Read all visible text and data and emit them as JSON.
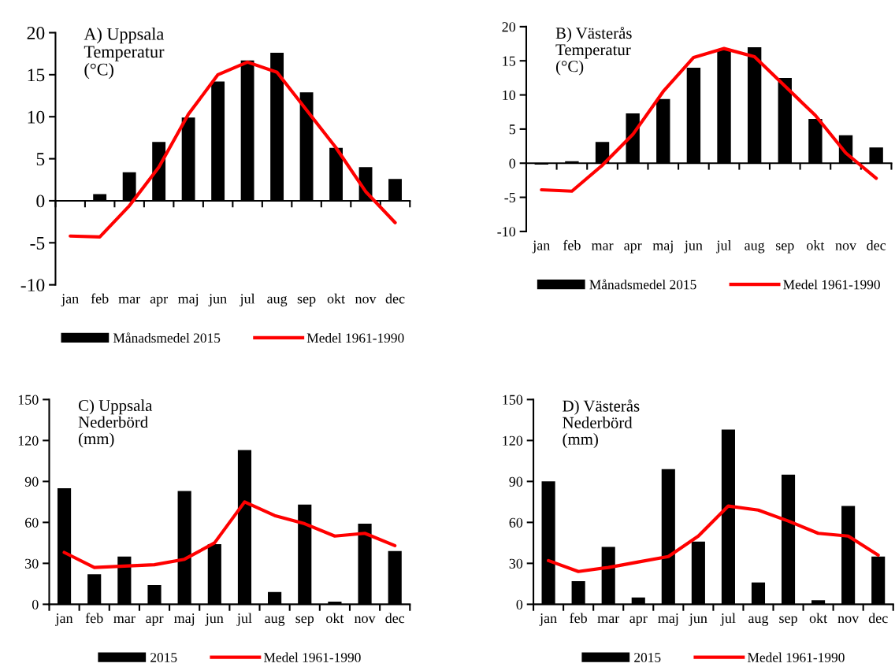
{
  "chart_data": [
    {
      "type": "bar",
      "title": "A) Uppsala\nTemperatur\n(°C)",
      "categories": [
        "jan",
        "feb",
        "mar",
        "apr",
        "maj",
        "jun",
        "jul",
        "aug",
        "sep",
        "okt",
        "nov",
        "dec"
      ],
      "ylim": [
        -10,
        20
      ],
      "yticks": [
        -10,
        -5,
        0,
        5,
        10,
        15,
        20
      ],
      "legend": "bottom",
      "series": [
        {
          "name": "Månadsmedel 2015",
          "color": "#000000",
          "values": [
            0,
            0.8,
            3.4,
            7.0,
            9.9,
            14.2,
            16.7,
            17.6,
            12.9,
            6.3,
            4.0,
            2.6
          ]
        },
        {
          "name": "Medel 1961-1990",
          "type": "line",
          "color": "#ff0000",
          "values": [
            -4.2,
            -4.3,
            -0.6,
            4.0,
            10.3,
            15.0,
            16.5,
            15.3,
            10.8,
            6.3,
            1.1,
            -2.6
          ]
        }
      ]
    },
    {
      "type": "bar",
      "title": "B) Västerås\nTemperatur\n(°C)",
      "categories": [
        "jan",
        "feb",
        "mar",
        "apr",
        "maj",
        "jun",
        "jul",
        "aug",
        "sep",
        "okt",
        "nov",
        "dec"
      ],
      "ylim": [
        -10,
        20
      ],
      "yticks": [
        -10,
        -5,
        0,
        5,
        10,
        15,
        20
      ],
      "legend": "bottom",
      "series": [
        {
          "name": "Månadsmedel 2015",
          "color": "#000000",
          "values": [
            -0.2,
            0.3,
            3.1,
            7.3,
            9.4,
            14.0,
            16.7,
            17.0,
            12.5,
            6.5,
            4.1,
            2.3
          ]
        },
        {
          "name": "Medel 1961-1990",
          "type": "line",
          "color": "#ff0000",
          "values": [
            -3.9,
            -4.1,
            -0.3,
            4.2,
            10.5,
            15.5,
            16.8,
            15.6,
            11.3,
            7.0,
            1.5,
            -2.2
          ]
        }
      ]
    },
    {
      "type": "bar",
      "title": "C) Uppsala\nNederbörd\n(mm)",
      "categories": [
        "jan",
        "feb",
        "mar",
        "apr",
        "maj",
        "jun",
        "jul",
        "aug",
        "sep",
        "okt",
        "nov",
        "dec"
      ],
      "ylim": [
        0,
        150
      ],
      "yticks": [
        0,
        30,
        60,
        90,
        120,
        150
      ],
      "grid": false,
      "legend": "bottom",
      "series": [
        {
          "name": "2015",
          "color": "#000000",
          "values": [
            85,
            22,
            35,
            14,
            83,
            44,
            113,
            9,
            73,
            2,
            59,
            39
          ]
        },
        {
          "name": "Medel 1961-1990",
          "type": "line",
          "color": "#ff0000",
          "values": [
            38,
            27,
            28,
            29,
            33,
            45,
            75,
            65,
            59,
            50,
            52,
            43
          ]
        }
      ]
    },
    {
      "type": "bar",
      "title": "D) Västerås\nNederbörd\n(mm)",
      "categories": [
        "jan",
        "feb",
        "mar",
        "apr",
        "maj",
        "jun",
        "jul",
        "aug",
        "sep",
        "okt",
        "nov",
        "dec"
      ],
      "ylim": [
        0,
        150
      ],
      "yticks": [
        0,
        30,
        60,
        90,
        120,
        150
      ],
      "grid": false,
      "legend": "bottom",
      "series": [
        {
          "name": "2015",
          "color": "#000000",
          "values": [
            90,
            17,
            42,
            5,
            99,
            46,
            128,
            16,
            95,
            3,
            72,
            35
          ]
        },
        {
          "name": "Medel 1961-1990",
          "type": "line",
          "color": "#ff0000",
          "values": [
            32,
            24,
            27,
            31,
            35,
            50,
            72,
            69,
            61,
            52,
            50,
            36
          ]
        }
      ]
    }
  ]
}
